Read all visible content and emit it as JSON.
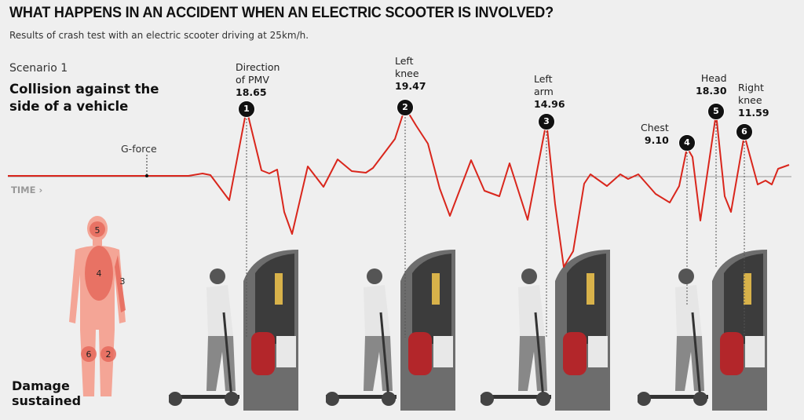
{
  "header": {
    "title": "WHAT HAPPENS IN AN ACCIDENT WHEN AN ELECTRIC SCOOTER IS INVOLVED?",
    "subtitle": "Results of crash test with an electric scooter driving at 25km/h."
  },
  "scenario": {
    "label": "Scenario 1",
    "title_line1": "Collision against the",
    "title_line2": "side of a vehicle"
  },
  "chart_data": {
    "type": "line",
    "ylabel": "G-force",
    "xlabel": "TIME",
    "line_color": "#d9261c",
    "peaks": [
      {
        "number": "1",
        "label_line1": "Direction",
        "label_line2": "of PMV",
        "value": "18.65"
      },
      {
        "number": "2",
        "label_line1": "Left",
        "label_line2": "knee",
        "value": "19.47"
      },
      {
        "number": "3",
        "label_line1": "Left",
        "label_line2": "arm",
        "value": "14.96"
      },
      {
        "number": "4",
        "label_line1": "Chest",
        "label_line2": "",
        "value": "9.10"
      },
      {
        "number": "5",
        "label_line1": "Head",
        "label_line2": "",
        "value": "18.30"
      },
      {
        "number": "6",
        "label_line1": "Right",
        "label_line2": "knee",
        "value": "11.59"
      }
    ]
  },
  "body": {
    "zones": [
      "5",
      "4",
      "3",
      "6",
      "2"
    ],
    "caption_line1": "Damage",
    "caption_line2": "sustained",
    "color": "#f4a596",
    "zone_color": "#e76a5c"
  }
}
